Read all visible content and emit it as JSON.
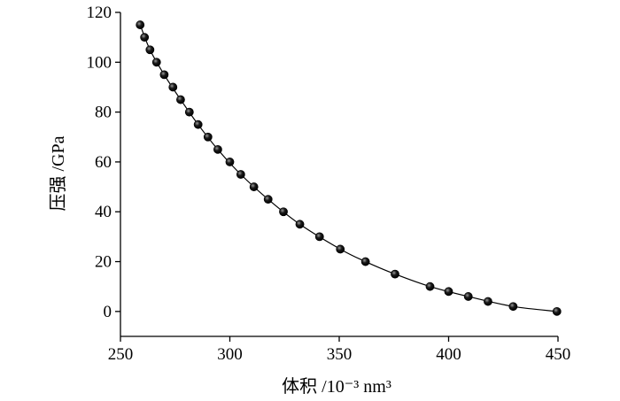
{
  "chart_data": {
    "type": "scatter",
    "xlabel": "体积 /10⁻³ nm³",
    "ylabel": "压强 /GPa",
    "xlim": [
      250,
      450
    ],
    "ylim": [
      -10,
      120
    ],
    "x_ticks": [
      250,
      300,
      350,
      400,
      450
    ],
    "y_ticks": [
      0,
      20,
      40,
      60,
      80,
      100,
      120
    ],
    "x_tick_labels": [
      "250",
      "300",
      "350",
      "400",
      "450"
    ],
    "y_tick_labels": [
      "0",
      "20",
      "40",
      "60",
      "80",
      "100",
      "120"
    ],
    "grid": false,
    "legend": "none",
    "series": [
      {
        "style": "markers",
        "color": "#000000",
        "points": [
          [
            259,
            115
          ],
          [
            261,
            110
          ],
          [
            263.5,
            105
          ],
          [
            266.5,
            100
          ],
          [
            270,
            95
          ],
          [
            274,
            90
          ],
          [
            277.5,
            85
          ],
          [
            281.5,
            80
          ],
          [
            285.5,
            75
          ],
          [
            290,
            70
          ],
          [
            294.5,
            65
          ],
          [
            300,
            60
          ],
          [
            305,
            55
          ],
          [
            311,
            50
          ],
          [
            317.5,
            45
          ],
          [
            324.5,
            40
          ],
          [
            332,
            35
          ],
          [
            341,
            30
          ],
          [
            350.5,
            25
          ],
          [
            362,
            20
          ],
          [
            375.5,
            15
          ],
          [
            391.5,
            10
          ],
          [
            400,
            8
          ],
          [
            409,
            6
          ],
          [
            418,
            4
          ],
          [
            429.5,
            2
          ],
          [
            449.5,
            0
          ]
        ]
      },
      {
        "style": "fit-line",
        "color": "#000000",
        "points": [
          [
            259,
            115
          ],
          [
            263.5,
            105
          ],
          [
            270,
            95
          ],
          [
            277.5,
            85
          ],
          [
            285.5,
            75
          ],
          [
            294.5,
            65
          ],
          [
            305,
            55
          ],
          [
            317.5,
            45
          ],
          [
            332,
            35
          ],
          [
            350.5,
            25
          ],
          [
            362,
            20
          ],
          [
            375.5,
            15
          ],
          [
            391.5,
            10
          ],
          [
            409,
            6
          ],
          [
            429.5,
            2
          ],
          [
            449.5,
            0
          ]
        ]
      }
    ]
  }
}
